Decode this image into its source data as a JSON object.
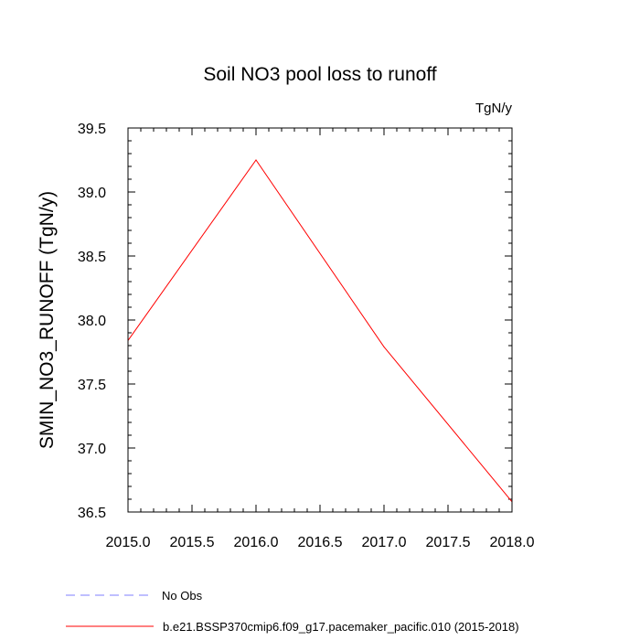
{
  "chart_data": {
    "type": "line",
    "title": "Soil NO3 pool loss to runoff",
    "units_label": "TgN/y",
    "ylabel": "SMIN_NO3_RUNOFF  (TgN/y)",
    "xlabel": "",
    "xlim": [
      2015.0,
      2018.0
    ],
    "ylim": [
      36.5,
      39.5
    ],
    "x_ticks": [
      "2015.0",
      "2015.5",
      "2016.0",
      "2016.5",
      "2017.0",
      "2017.5",
      "2018.0"
    ],
    "y_ticks": [
      "36.5",
      "37.0",
      "37.5",
      "38.0",
      "38.5",
      "39.0",
      "39.5"
    ],
    "x_major_step": 0.5,
    "x_minor_step": 0.1,
    "y_major_step": 0.5,
    "y_minor_step": 0.1,
    "grid": false,
    "legend_position": "bottom",
    "series": [
      {
        "name": "b.e21.BSSP370cmip6.f09_g17.pacemaker_pacific.010 (2015-2018)",
        "color": "#ff0000",
        "dash": "solid",
        "x": [
          2015.0,
          2016.0,
          2017.0,
          2018.0
        ],
        "y": [
          37.84,
          39.25,
          37.79,
          36.58
        ]
      }
    ],
    "legend_entries": [
      {
        "label": "No Obs",
        "color": "#7f7fff",
        "dash": "dashed"
      },
      {
        "label": "b.e21.BSSP370cmip6.f09_g17.pacemaker_pacific.010 (2015-2018)",
        "color": "#ff0000",
        "dash": "solid"
      }
    ]
  }
}
